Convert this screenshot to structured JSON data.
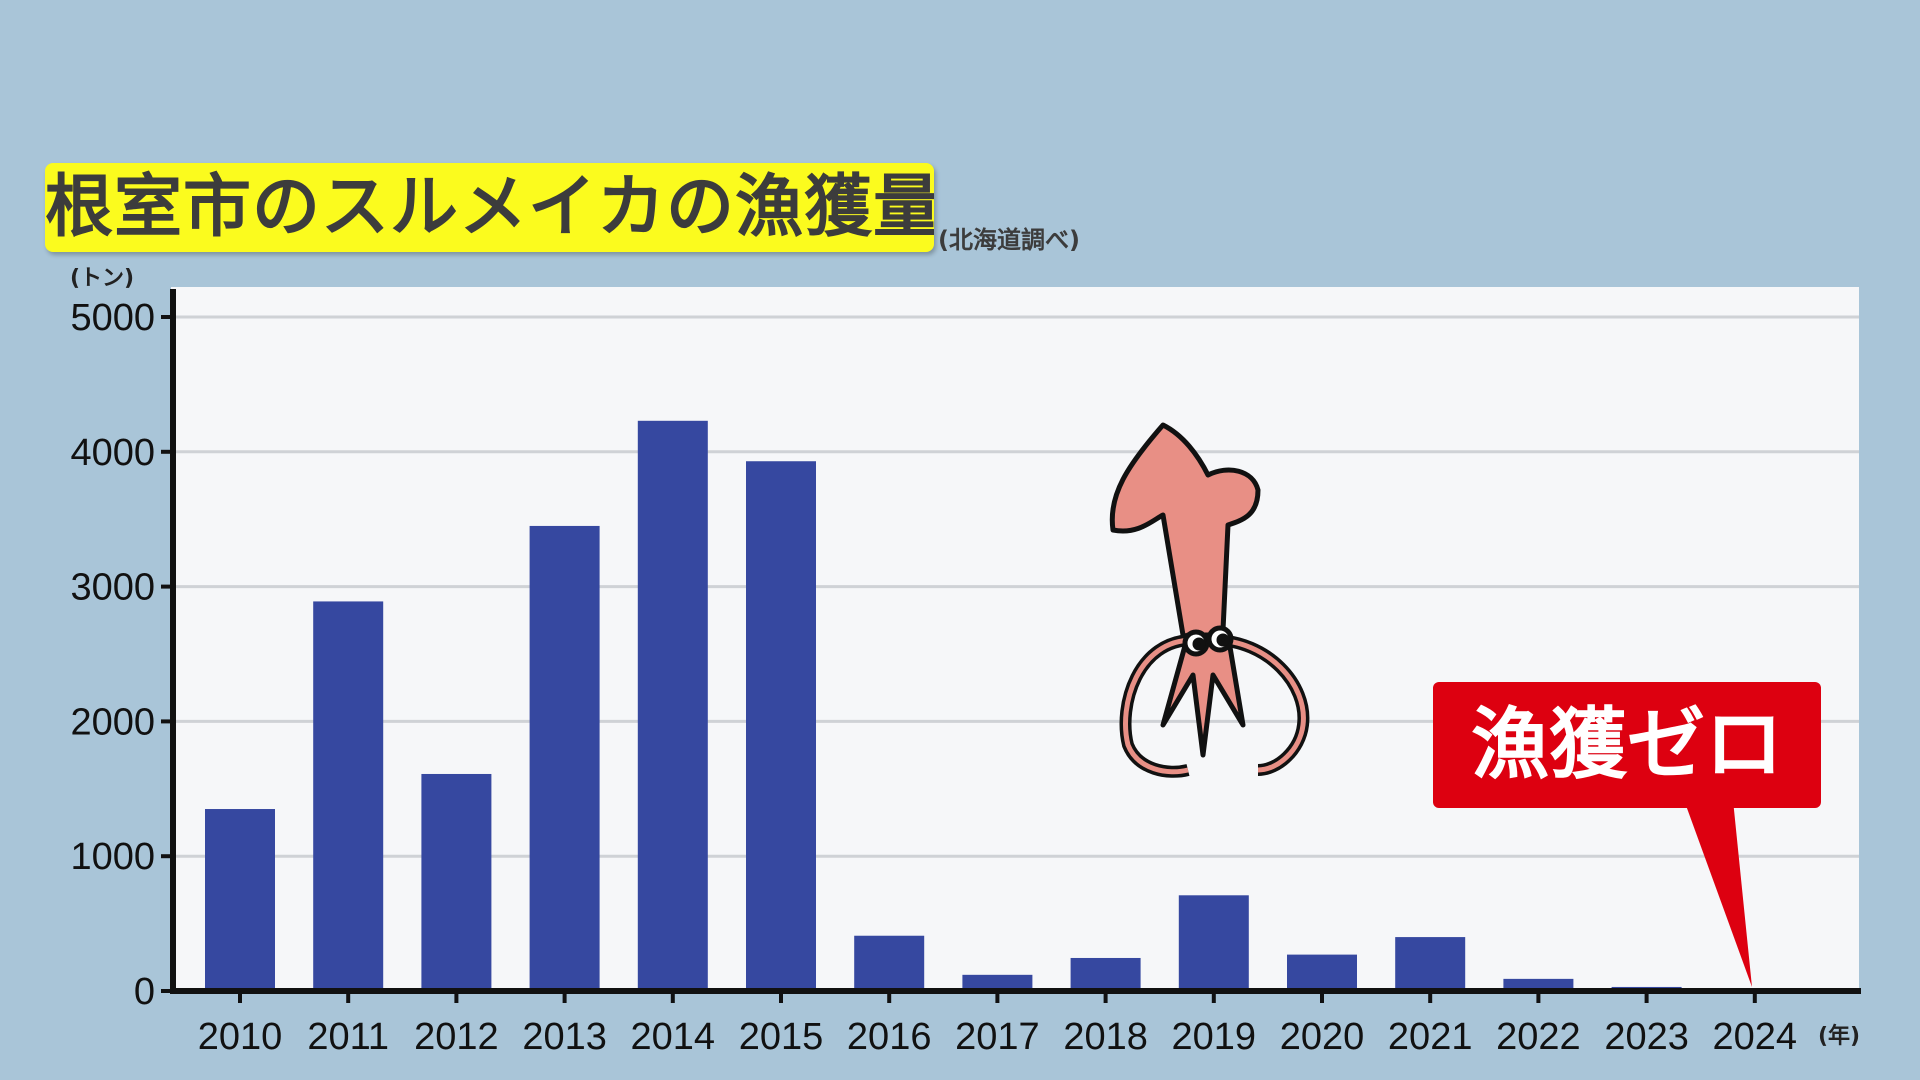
{
  "chart_data": {
    "type": "bar",
    "title": "根室市のスルメイカの漁獲量",
    "source": "(北海道調べ)",
    "ylabel": "(トン)",
    "xlabel": "(年)",
    "categories": [
      "2010",
      "2011",
      "2012",
      "2013",
      "2014",
      "2015",
      "2016",
      "2017",
      "2018",
      "2019",
      "2020",
      "2021",
      "2022",
      "2023",
      "2024"
    ],
    "values": [
      1350,
      2890,
      1610,
      3450,
      4230,
      3930,
      410,
      120,
      245,
      710,
      270,
      400,
      90,
      30,
      0
    ],
    "ylim": [
      0,
      5000
    ],
    "yticks": [
      0,
      1000,
      2000,
      3000,
      4000,
      5000
    ],
    "grid": true,
    "bar_color": "#3648a0",
    "annotation": {
      "text": "漁獲ゼロ",
      "target": "2024",
      "color": "#dd0010"
    }
  },
  "colors": {
    "background": "#a9c5d8",
    "plot": "#f6f7f9",
    "title_bg": "#fbfb1e"
  },
  "icons": [
    "squid-illustration"
  ]
}
